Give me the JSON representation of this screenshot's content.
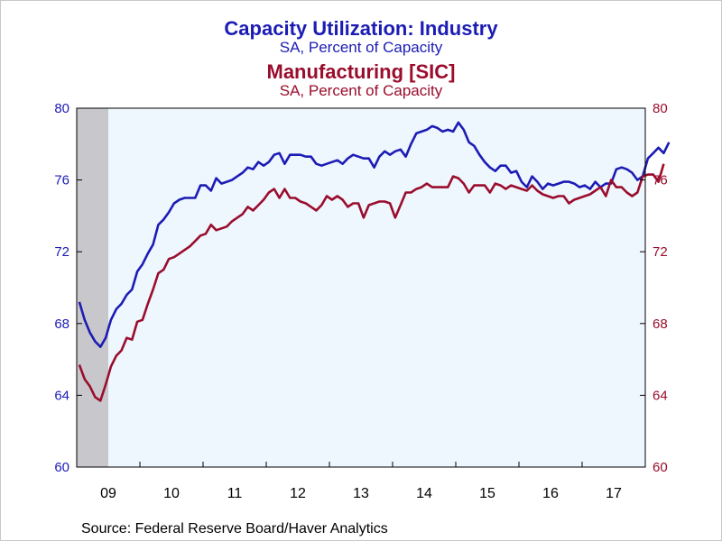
{
  "titles": {
    "series1_title": "Capacity Utilization: Industry",
    "series1_subtitle": "SA, Percent of Capacity",
    "series2_title": "Manufacturing [SIC]",
    "series2_subtitle": "SA, Percent of Capacity"
  },
  "source": "Source:  Federal Reserve Board/Haver Analytics",
  "colors": {
    "series1": "#1c1cb4",
    "series2": "#9a0d2c",
    "plot_bg": "#eef6fe",
    "recession": "#c8c8cc"
  },
  "chart_data": {
    "type": "line",
    "title": "",
    "xlabel": "",
    "ylabel": "",
    "ylim": [
      60,
      80
    ],
    "y_ticks": [
      "60",
      "64",
      "68",
      "72",
      "76",
      "80"
    ],
    "y_ticks_right": [
      "60",
      "64",
      "68",
      "72",
      "76",
      "80"
    ],
    "x_tick_labels": [
      "09",
      "10",
      "11",
      "12",
      "13",
      "14",
      "15",
      "16",
      "17"
    ],
    "x_range": [
      "2009-01",
      "2017-12"
    ],
    "recession_shading": {
      "start": "2009-01",
      "end": "2009-06"
    },
    "grid": false,
    "x_month_start": "2009-01",
    "series": [
      {
        "name": "Capacity Utilization: Industry",
        "axis": "left",
        "values": [
          69.2,
          68.2,
          67.5,
          67.0,
          66.7,
          67.2,
          68.2,
          68.8,
          69.1,
          69.6,
          69.9,
          70.9,
          71.3,
          71.9,
          72.4,
          73.5,
          73.8,
          74.2,
          74.7,
          74.9,
          75.0,
          75.0,
          75.0,
          75.7,
          75.7,
          75.4,
          76.1,
          75.8,
          75.9,
          76.0,
          76.2,
          76.4,
          76.7,
          76.6,
          77.0,
          76.8,
          77.0,
          77.4,
          77.5,
          76.9,
          77.4,
          77.4,
          77.4,
          77.3,
          77.3,
          76.9,
          76.8,
          76.9,
          77.0,
          77.1,
          76.9,
          77.2,
          77.4,
          77.3,
          77.2,
          77.2,
          76.7,
          77.3,
          77.6,
          77.4,
          77.6,
          77.7,
          77.3,
          78.0,
          78.6,
          78.7,
          78.8,
          79.0,
          78.9,
          78.7,
          78.8,
          78.7,
          79.2,
          78.8,
          78.1,
          77.9,
          77.4,
          77.0,
          76.7,
          76.5,
          76.8,
          76.8,
          76.4,
          76.5,
          75.9,
          75.6,
          76.2,
          75.9,
          75.5,
          75.8,
          75.7,
          75.8,
          75.9,
          75.9,
          75.8,
          75.6,
          75.7,
          75.5,
          75.9,
          75.6,
          75.8,
          75.8,
          76.6,
          76.7,
          76.6,
          76.4,
          76.0,
          76.2,
          77.2,
          77.5,
          77.8,
          77.5,
          78.1
        ]
      },
      {
        "name": "Manufacturing [SIC]",
        "axis": "right",
        "values": [
          65.7,
          64.9,
          64.5,
          63.9,
          63.7,
          64.6,
          65.6,
          66.2,
          66.5,
          67.2,
          67.1,
          68.1,
          68.2,
          69.1,
          69.9,
          70.8,
          71.0,
          71.6,
          71.7,
          71.9,
          72.1,
          72.3,
          72.6,
          72.9,
          73.0,
          73.5,
          73.2,
          73.3,
          73.4,
          73.7,
          73.9,
          74.1,
          74.5,
          74.3,
          74.6,
          74.9,
          75.3,
          75.5,
          75.0,
          75.5,
          75.0,
          75.0,
          74.8,
          74.7,
          74.5,
          74.3,
          74.6,
          75.1,
          74.9,
          75.1,
          74.9,
          74.5,
          74.7,
          74.7,
          73.9,
          74.6,
          74.7,
          74.8,
          74.8,
          74.7,
          73.9,
          74.6,
          75.3,
          75.3,
          75.5,
          75.6,
          75.8,
          75.6,
          75.6,
          75.6,
          75.6,
          76.2,
          76.1,
          75.8,
          75.3,
          75.7,
          75.7,
          75.7,
          75.3,
          75.8,
          75.7,
          75.5,
          75.7,
          75.6,
          75.5,
          75.4,
          75.7,
          75.4,
          75.2,
          75.1,
          75.0,
          75.1,
          75.1,
          74.7,
          74.9,
          75.0,
          75.1,
          75.2,
          75.4,
          75.6,
          75.1,
          76.0,
          75.6,
          75.6,
          75.3,
          75.1,
          75.3,
          76.2,
          76.3,
          76.3,
          75.9,
          76.9
        ]
      }
    ]
  }
}
